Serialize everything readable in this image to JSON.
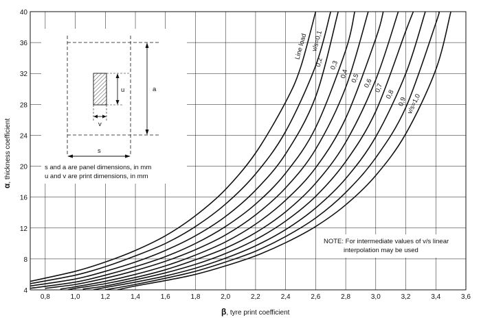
{
  "chart_data": {
    "type": "line",
    "xlabel_symbol": "β",
    "xlabel": ", tyre print coefficient",
    "ylabel_symbol": "α",
    "ylabel": ", thickness coefficient",
    "xlim": [
      0.7,
      3.6
    ],
    "ylim": [
      4,
      40
    ],
    "x_ticks": [
      "0,8",
      "1,0",
      "1,2",
      "1,4",
      "1,6",
      "1,8",
      "2,0",
      "2,2",
      "2,4",
      "2,6",
      "2,8",
      "3,0",
      "3,2",
      "3,4",
      "3,6"
    ],
    "y_ticks": [
      "4",
      "8",
      "12",
      "16",
      "20",
      "24",
      "28",
      "32",
      "36",
      "40"
    ],
    "series": [
      {
        "name": "Line load",
        "x": [
          0.7,
          1.0,
          1.2,
          1.4,
          1.6,
          1.8,
          2.0,
          2.2,
          2.4,
          2.5,
          2.6
        ],
        "y": [
          5.1,
          6.4,
          7.6,
          9.1,
          11.0,
          13.6,
          17.0,
          21.7,
          28.3,
          32.8,
          40
        ]
      },
      {
        "name": "v/s=0,1",
        "x": [
          0.7,
          1.0,
          1.2,
          1.4,
          1.6,
          1.8,
          2.0,
          2.2,
          2.4,
          2.6,
          2.7
        ],
        "y": [
          4.8,
          5.9,
          7.0,
          8.4,
          10.0,
          12.2,
          15.1,
          19.0,
          24.5,
          33.0,
          40
        ]
      },
      {
        "name": "0,2",
        "x": [
          0.7,
          1.0,
          1.2,
          1.4,
          1.6,
          1.8,
          2.0,
          2.2,
          2.4,
          2.6,
          2.75
        ],
        "y": [
          4.5,
          5.4,
          6.4,
          7.6,
          9.1,
          11.0,
          13.5,
          16.9,
          21.6,
          29.0,
          40
        ]
      },
      {
        "name": "0,3",
        "x": [
          0.7,
          1.0,
          1.2,
          1.4,
          1.6,
          1.8,
          2.0,
          2.2,
          2.4,
          2.6,
          2.8,
          2.86
        ],
        "y": [
          4.2,
          5.0,
          5.9,
          7.0,
          8.3,
          10.0,
          12.2,
          15.1,
          19.1,
          25.0,
          35.0,
          40
        ]
      },
      {
        "name": "0,4",
        "x": [
          0.8,
          1.0,
          1.2,
          1.4,
          1.6,
          1.8,
          2.0,
          2.2,
          2.4,
          2.6,
          2.8,
          2.95
        ],
        "y": [
          4.2,
          4.7,
          5.5,
          6.5,
          7.7,
          9.2,
          11.1,
          13.7,
          17.2,
          22.2,
          30.2,
          40
        ]
      },
      {
        "name": "0,5",
        "x": [
          0.9,
          1.0,
          1.2,
          1.4,
          1.6,
          1.8,
          2.0,
          2.2,
          2.4,
          2.6,
          2.8,
          3.0,
          3.05
        ],
        "y": [
          4.1,
          4.4,
          5.1,
          6.0,
          7.1,
          8.5,
          10.2,
          12.5,
          15.6,
          19.8,
          26.2,
          36.5,
          40
        ]
      },
      {
        "name": "0,6",
        "x": [
          0.95,
          1.0,
          1.2,
          1.4,
          1.6,
          1.8,
          2.0,
          2.2,
          2.4,
          2.6,
          2.8,
          3.0,
          3.15
        ],
        "y": [
          4.0,
          4.2,
          4.8,
          5.6,
          6.6,
          7.9,
          9.4,
          11.4,
          14.1,
          17.8,
          23.1,
          31.2,
          40
        ]
      },
      {
        "name": "0,7",
        "x": [
          1.05,
          1.2,
          1.4,
          1.6,
          1.8,
          2.0,
          2.2,
          2.4,
          2.6,
          2.8,
          3.0,
          3.2,
          3.25
        ],
        "y": [
          4.1,
          4.5,
          5.3,
          6.2,
          7.3,
          8.7,
          10.5,
          12.9,
          16.1,
          20.6,
          27.1,
          37.5,
          40
        ]
      },
      {
        "name": "0,8",
        "x": [
          1.12,
          1.2,
          1.4,
          1.6,
          1.8,
          2.0,
          2.2,
          2.4,
          2.6,
          2.8,
          3.0,
          3.2,
          3.33
        ],
        "y": [
          4.0,
          4.3,
          5.0,
          5.8,
          6.8,
          8.1,
          9.7,
          11.8,
          14.6,
          18.4,
          23.8,
          32.0,
          40
        ]
      },
      {
        "name": "0,9",
        "x": [
          1.2,
          1.4,
          1.6,
          1.8,
          2.0,
          2.2,
          2.4,
          2.6,
          2.8,
          3.0,
          3.2,
          3.4,
          3.42
        ],
        "y": [
          4.0,
          4.7,
          5.5,
          6.4,
          7.6,
          9.0,
          10.9,
          13.3,
          16.6,
          21.1,
          27.6,
          38.5,
          40
        ]
      },
      {
        "name": "v/s=1,0",
        "x": [
          1.28,
          1.4,
          1.6,
          1.8,
          2.0,
          2.2,
          2.4,
          2.6,
          2.8,
          3.0,
          3.2,
          3.4,
          3.5
        ],
        "y": [
          4.0,
          4.5,
          5.2,
          6.0,
          7.1,
          8.4,
          10.1,
          12.2,
          15.0,
          18.8,
          24.2,
          32.5,
          40
        ]
      }
    ],
    "curve_labels": [
      {
        "text": "Line load",
        "series": 0
      },
      {
        "text": "v/s=0,1",
        "series": 1
      },
      {
        "text": "0,2",
        "series": 2
      },
      {
        "text": "0,3",
        "series": 3
      },
      {
        "text": "0,4",
        "series": 4
      },
      {
        "text": "0,5",
        "series": 5
      },
      {
        "text": "0,6",
        "series": 6
      },
      {
        "text": "0,7",
        "series": 7
      },
      {
        "text": "0,8",
        "series": 8
      },
      {
        "text": "0,9",
        "series": 9
      },
      {
        "text": "v/s=1,0",
        "series": 10
      }
    ],
    "grid": true
  },
  "inset": {
    "label_s": "s",
    "label_a": "a",
    "label_u": "u",
    "label_v": "v",
    "caption_line1": "s and a are panel dimensions, in mm",
    "caption_line2": "u and v are print dimensions, in mm"
  },
  "note": {
    "prefix": "NOTE",
    "line1": "For intermediate values of v/s linear",
    "line2": "interpolation may be used"
  }
}
